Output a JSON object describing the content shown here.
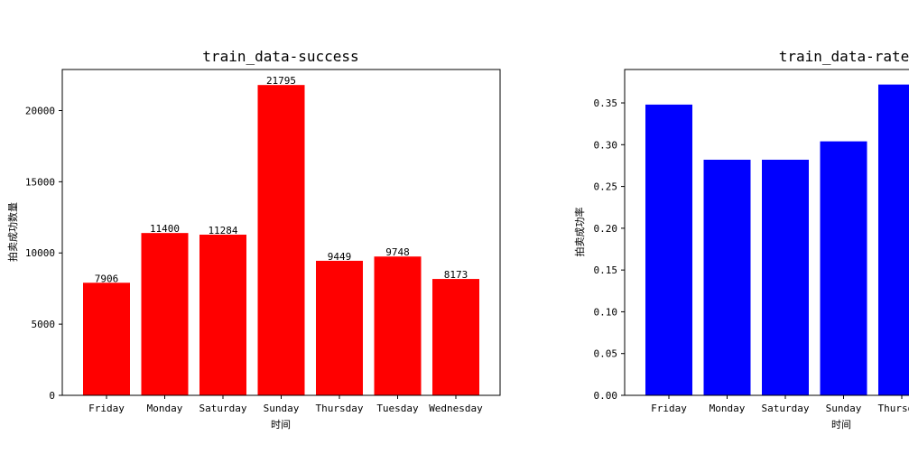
{
  "chart_data": [
    {
      "type": "bar",
      "title": "train_data-success",
      "xlabel": "时间",
      "ylabel": "拍卖成功数量",
      "categories": [
        "Friday",
        "Monday",
        "Saturday",
        "Sunday",
        "Thursday",
        "Tuesday",
        "Wednesday"
      ],
      "values": [
        7906,
        11400,
        11284,
        21795,
        9449,
        9748,
        8173
      ],
      "data_labels": [
        "7906",
        "11400",
        "11284",
        "21795",
        "9449",
        "9748",
        "8173"
      ],
      "ylim": [
        0,
        22884
      ],
      "yticks": [
        0,
        5000,
        10000,
        15000,
        20000
      ],
      "ytick_labels": [
        "0",
        "5000",
        "10000",
        "15000",
        "20000"
      ],
      "color": "#ff0000",
      "grid": false,
      "legend": "none"
    },
    {
      "type": "bar",
      "title": "train_data-rate",
      "xlabel": "时间",
      "ylabel": "拍卖成功率",
      "categories": [
        "Friday",
        "Monday",
        "Saturday",
        "Sunday",
        "Thursday"
      ],
      "values": [
        0.348,
        0.282,
        0.282,
        0.304,
        0.372
      ],
      "ylim": [
        0,
        0.39
      ],
      "yticks": [
        0,
        0.05,
        0.1,
        0.15,
        0.2,
        0.25,
        0.3,
        0.35
      ],
      "ytick_labels": [
        "0.00",
        "0.05",
        "0.10",
        "0.15",
        "0.20",
        "0.25",
        "0.30",
        "0.35"
      ],
      "color": "#0000ff",
      "grid": false,
      "legend": "none"
    }
  ]
}
